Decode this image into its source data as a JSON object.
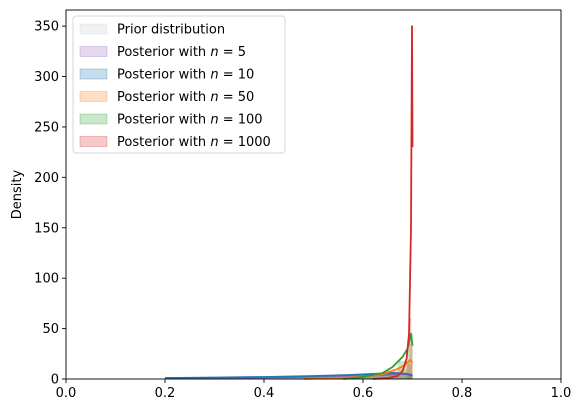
{
  "chart_data": {
    "type": "area",
    "xlabel": "",
    "ylabel": "Density",
    "xlim": [
      0.0,
      1.0
    ],
    "ylim": [
      0,
      366
    ],
    "xticks": [
      "0.0",
      "0.2",
      "0.4",
      "0.6",
      "0.8",
      "1.0"
    ],
    "yticks": [
      "0",
      "50",
      "100",
      "150",
      "200",
      "250",
      "300",
      "350"
    ],
    "grid": false,
    "legend_position": "top-left",
    "legend": [
      {
        "prefix": "Prior distribution",
        "suffix": ""
      },
      {
        "prefix": "Posterior with ",
        "suffix": " = 5"
      },
      {
        "prefix": "Posterior with ",
        "suffix": " = 10"
      },
      {
        "prefix": "Posterior with ",
        "suffix": " = 50"
      },
      {
        "prefix": "Posterior with ",
        "suffix": " = 100"
      },
      {
        "prefix": "Posterior with ",
        "suffix": " = 1000"
      }
    ],
    "legend_italic": "n",
    "series": [
      {
        "name": "Prior distribution",
        "color": "#c8c8c8",
        "hist": {
          "edges": [
            0.2,
            0.7
          ],
          "heights": [
            2
          ]
        },
        "kde": {
          "x": [],
          "y": []
        }
      },
      {
        "name": "Posterior with n = 5",
        "color": "#9467bd",
        "hist": {
          "edges": [
            0.2,
            0.3,
            0.4,
            0.5,
            0.6,
            0.65,
            0.7
          ],
          "heights": [
            1,
            1,
            1,
            2,
            3,
            4
          ]
        },
        "kde": {
          "x": [
            0.2,
            0.3,
            0.4,
            0.5,
            0.6,
            0.65,
            0.68,
            0.7
          ],
          "y": [
            1,
            1,
            1.5,
            2,
            3,
            4,
            5,
            4
          ]
        }
      },
      {
        "name": "Posterior with n = 10",
        "color": "#1f77b4",
        "hist": {
          "edges": [
            0.2,
            0.3,
            0.4,
            0.5,
            0.6,
            0.65,
            0.7
          ],
          "heights": [
            1,
            1.5,
            2,
            3,
            5,
            6
          ]
        },
        "kde": {
          "x": [
            0.2,
            0.3,
            0.4,
            0.5,
            0.57,
            0.62,
            0.66,
            0.69,
            0.7
          ],
          "y": [
            1,
            1.5,
            2,
            3,
            4,
            5,
            6,
            5,
            3
          ]
        }
      },
      {
        "name": "Posterior with n = 50",
        "color": "#ff7f0e",
        "hist": {
          "edges": [
            0.48,
            0.54,
            0.6,
            0.64,
            0.67,
            0.69,
            0.7
          ],
          "heights": [
            1,
            1,
            3,
            5,
            10,
            15
          ]
        },
        "kde": {
          "x": [
            0.48,
            0.54,
            0.6,
            0.64,
            0.67,
            0.685,
            0.695,
            0.7
          ],
          "y": [
            0,
            1,
            2,
            5,
            10,
            14,
            19,
            16
          ]
        }
      },
      {
        "name": "Posterior with n = 100",
        "color": "#2ca02c",
        "hist": {
          "edges": [
            0.56,
            0.6,
            0.64,
            0.67,
            0.69,
            0.7
          ],
          "heights": [
            1,
            3,
            8,
            18,
            35
          ]
        },
        "kde": {
          "x": [
            0.56,
            0.6,
            0.64,
            0.66,
            0.68,
            0.69,
            0.697,
            0.7
          ],
          "y": [
            0,
            2,
            6,
            12,
            22,
            30,
            45,
            33
          ]
        }
      },
      {
        "name": "Posterior with n = 1000",
        "color": "#d62728",
        "hist": {
          "edges": [
            0.688,
            0.694,
            0.698,
            0.7
          ],
          "heights": [
            18,
            60,
            45
          ]
        },
        "kde": {
          "x": [
            0.62,
            0.65,
            0.67,
            0.68,
            0.688,
            0.693,
            0.697,
            0.699,
            0.7
          ],
          "y": [
            0,
            1,
            3,
            8,
            20,
            45,
            150,
            350,
            230
          ]
        }
      }
    ]
  }
}
